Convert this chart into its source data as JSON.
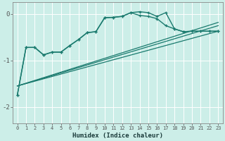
{
  "xlabel": "Humidex (Indice chaleur)",
  "background_color": "#cceee8",
  "grid_color": "#ffffff",
  "line_color": "#1a7a6e",
  "xlim": [
    -0.5,
    23.5
  ],
  "ylim": [
    -2.35,
    0.25
  ],
  "yticks": [
    0,
    -1,
    -2
  ],
  "xticks": [
    0,
    1,
    2,
    3,
    4,
    5,
    6,
    7,
    8,
    9,
    10,
    11,
    12,
    13,
    14,
    15,
    16,
    17,
    18,
    19,
    20,
    21,
    22,
    23
  ],
  "trend1_x": [
    0,
    23
  ],
  "trend1_y": [
    -1.55,
    -0.37
  ],
  "trend2_x": [
    0,
    23
  ],
  "trend2_y": [
    -1.55,
    -0.25
  ],
  "trend3_x": [
    0,
    23
  ],
  "trend3_y": [
    -1.55,
    -0.18
  ],
  "marked1_x": [
    0,
    1,
    2,
    3,
    4,
    5,
    6,
    7,
    8,
    9,
    10,
    11,
    12,
    13,
    14,
    15,
    16,
    17,
    18,
    19,
    20,
    21,
    22,
    23
  ],
  "marked1_y": [
    -1.75,
    -0.72,
    -0.72,
    -0.88,
    -0.82,
    -0.82,
    -0.68,
    -0.55,
    -0.4,
    -0.38,
    -0.08,
    -0.07,
    -0.05,
    0.03,
    -0.03,
    -0.05,
    -0.1,
    -0.25,
    -0.32,
    -0.38,
    -0.37,
    -0.37,
    -0.37,
    -0.37
  ],
  "marked2_x": [
    0,
    1,
    2,
    3,
    4,
    5,
    6,
    7,
    8,
    9,
    10,
    11,
    12,
    13,
    14,
    15,
    16,
    17,
    18,
    19,
    20,
    21,
    22,
    23
  ],
  "marked2_y": [
    -1.75,
    -0.72,
    -0.72,
    -0.88,
    -0.82,
    -0.82,
    -0.68,
    -0.55,
    -0.4,
    -0.38,
    -0.08,
    -0.07,
    -0.05,
    0.03,
    0.05,
    0.03,
    -0.05,
    0.03,
    -0.32,
    -0.38,
    -0.37,
    -0.37,
    -0.37,
    -0.37
  ]
}
